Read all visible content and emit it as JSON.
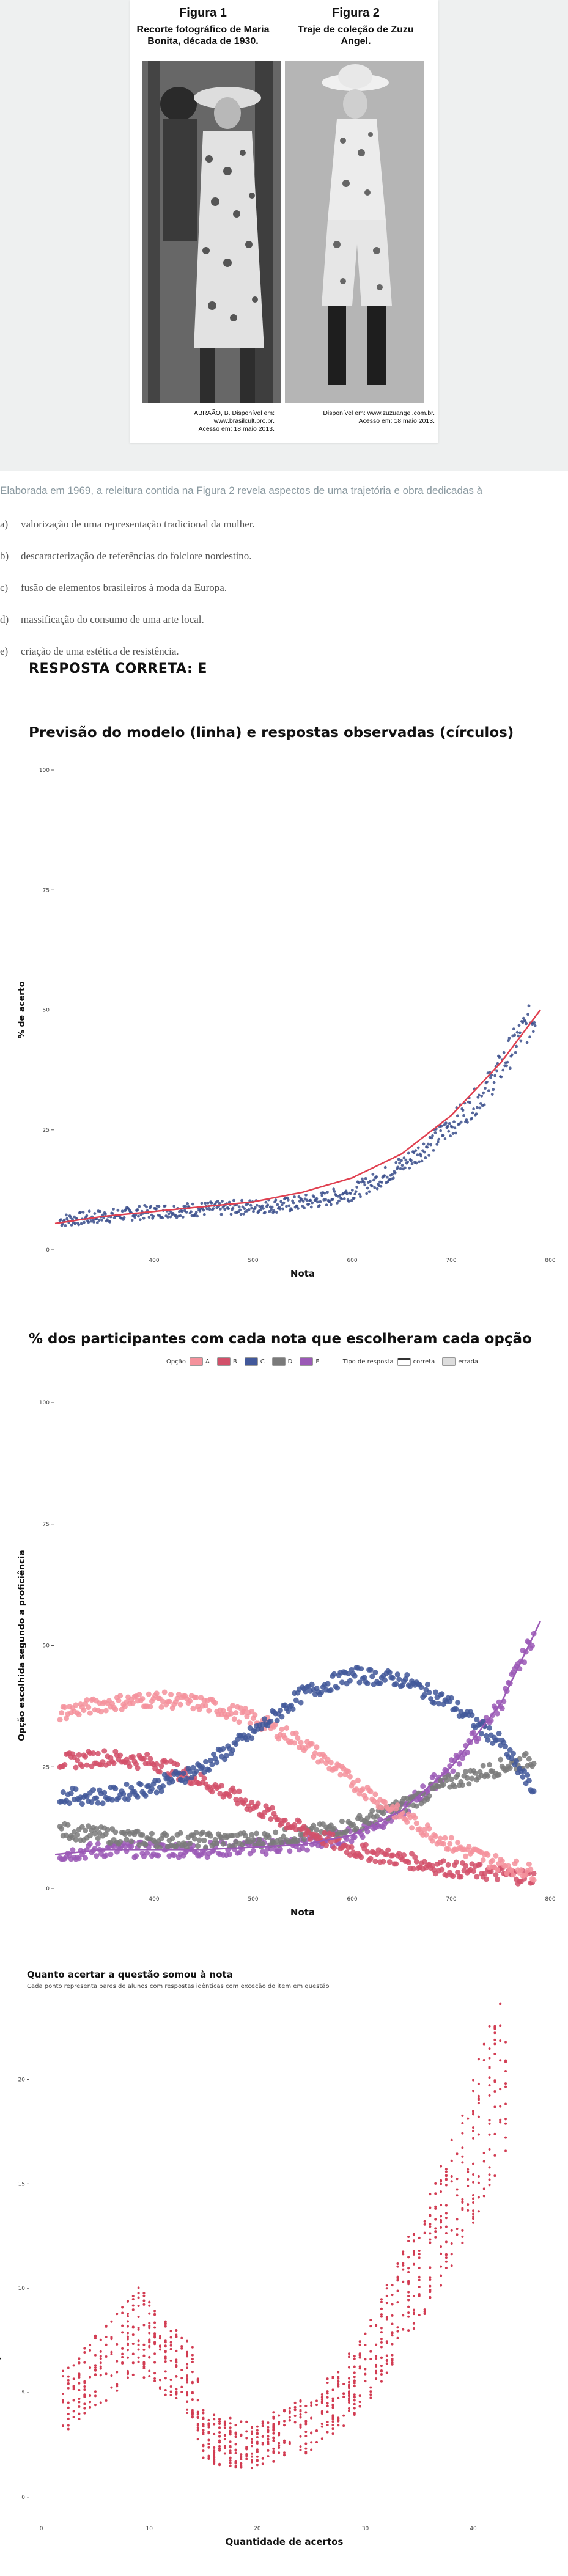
{
  "figures": [
    {
      "number": "Figura 1",
      "caption": "Recorte fotográfico de Maria Bonita, década de 1930.",
      "credit_line1": "ABRAÃO, B. Disponível em: www.brasilcult.pro.br.",
      "credit_line2": "Acesso em: 18 maio 2013."
    },
    {
      "number": "Figura 2",
      "caption": "Traje de coleção de Zuzu Angel.",
      "credit_line1": "Disponível em: www.zuzuangel.com.br.",
      "credit_line2": "Acesso em: 18 maio 2013."
    }
  ],
  "question": {
    "intro": "Elaborada em 1969, a releitura contida na Figura 2 revela aspectos de uma trajetória e obra dedicadas à",
    "options": [
      {
        "letter": "a)",
        "text": "valorização de uma representação tradicional da mulher."
      },
      {
        "letter": "b)",
        "text": "descaracterização de referências do folclore nordestino."
      },
      {
        "letter": "c)",
        "text": "fusão de elementos brasileiros à moda da Europa."
      },
      {
        "letter": "d)",
        "text": "massificação do consumo de uma arte local."
      },
      {
        "letter": "e)",
        "text": "criação de uma estética de resistência."
      }
    ],
    "answer": "RESPOSTA CORRETA: E"
  },
  "chart_data": [
    {
      "type": "scatter",
      "title": "Previsão do modelo (linha) e respostas observadas (círculos)",
      "xlabel": "Nota",
      "ylabel": "% de acerto",
      "xticks": [
        "400",
        "500",
        "600",
        "700",
        "800"
      ],
      "yticks": [
        "0",
        "25",
        "50",
        "75",
        "100"
      ],
      "xlim": [
        300,
        800
      ],
      "ylim": [
        0,
        100
      ],
      "series": [
        {
          "role": "observed",
          "color": "#3b4f8c",
          "x": [
            300,
            350,
            400,
            450,
            500,
            540,
            570,
            600,
            630,
            660,
            690,
            710,
            730,
            750,
            770,
            790
          ],
          "y": [
            6,
            7,
            8,
            8.5,
            9,
            9.5,
            10.5,
            12,
            15,
            19,
            24,
            28,
            32,
            38,
            45,
            50
          ]
        },
        {
          "role": "model",
          "color": "#e04050",
          "x": [
            300,
            350,
            400,
            450,
            500,
            550,
            600,
            650,
            700,
            750,
            790
          ],
          "y": [
            5.5,
            7,
            8,
            9,
            10,
            12,
            15,
            20,
            28,
            39,
            50
          ]
        }
      ]
    },
    {
      "type": "scatter",
      "title": "% dos participantes com cada nota que escolheram cada opção",
      "xlabel": "Nota",
      "ylabel": "Opção escolhida segundo a proficiência",
      "xticks": [
        "400",
        "500",
        "600",
        "700",
        "800"
      ],
      "yticks": [
        "0",
        "25",
        "50",
        "75",
        "100"
      ],
      "xlim": [
        300,
        800
      ],
      "ylim": [
        0,
        100
      ],
      "legend": {
        "option_label": "Opção",
        "options": [
          "A",
          "B",
          "C",
          "D",
          "E"
        ],
        "type_label": "Tipo de resposta",
        "types": [
          "correta",
          "errada"
        ]
      },
      "series": [
        {
          "name": "A",
          "color": "#f4929c",
          "x": [
            300,
            350,
            400,
            450,
            500,
            550,
            600,
            650,
            700,
            750,
            790
          ],
          "y": [
            36,
            38,
            39,
            38,
            35,
            30,
            22,
            15,
            9,
            5,
            3
          ]
        },
        {
          "name": "B",
          "color": "#d2506a",
          "x": [
            300,
            350,
            400,
            450,
            500,
            550,
            600,
            650,
            700,
            750,
            790
          ],
          "y": [
            26,
            27,
            26,
            22,
            17,
            12,
            8,
            6,
            4,
            3,
            2
          ]
        },
        {
          "name": "C",
          "color": "#42589a",
          "x": [
            300,
            350,
            400,
            450,
            500,
            550,
            600,
            650,
            700,
            750,
            790
          ],
          "y": [
            19,
            19,
            21,
            25,
            32,
            40,
            44,
            43,
            38,
            30,
            18
          ]
        },
        {
          "name": "D",
          "color": "#7a7a7a",
          "x": [
            300,
            350,
            400,
            450,
            500,
            550,
            600,
            650,
            700,
            750,
            790
          ],
          "y": [
            12,
            11,
            10,
            10,
            10,
            11,
            13,
            17,
            22,
            25,
            27
          ]
        },
        {
          "name": "E",
          "color": "#9b59b6",
          "x": [
            300,
            350,
            400,
            450,
            500,
            550,
            600,
            650,
            700,
            750,
            790
          ],
          "y": [
            7,
            8,
            8,
            8,
            8.5,
            9,
            11,
            16,
            25,
            38,
            55
          ]
        }
      ]
    },
    {
      "type": "scatter",
      "title": "Quanto acertar a questão somou à nota",
      "subtitle": "Cada ponto representa pares de alunos com respostas idênticas com exceção do item em questão",
      "xlabel": "Quantidade de acertos",
      "ylabel": "Quanto acertar o item aumentou a nota",
      "xticks": [
        "0",
        "10",
        "20",
        "30",
        "40"
      ],
      "yticks": [
        "0",
        "5",
        "10",
        "15",
        "20"
      ],
      "xlim": [
        -1,
        46
      ],
      "ylim": [
        -1,
        23
      ],
      "color": "#d23c52",
      "series": [
        {
          "name": "gains",
          "x": [
            2,
            3,
            4,
            5,
            6,
            7,
            8,
            9,
            10,
            11,
            12,
            14,
            15,
            18,
            20,
            22,
            25,
            27,
            29,
            31,
            33,
            35,
            37,
            39,
            41,
            43
          ],
          "y": [
            4.5,
            5,
            5.5,
            6,
            6.5,
            7,
            7.5,
            8,
            7.5,
            7,
            6.5,
            5.5,
            3,
            2.5,
            2.5,
            3,
            3.5,
            4.5,
            5.5,
            7,
            9,
            11,
            13,
            15,
            18,
            21
          ]
        }
      ]
    }
  ]
}
